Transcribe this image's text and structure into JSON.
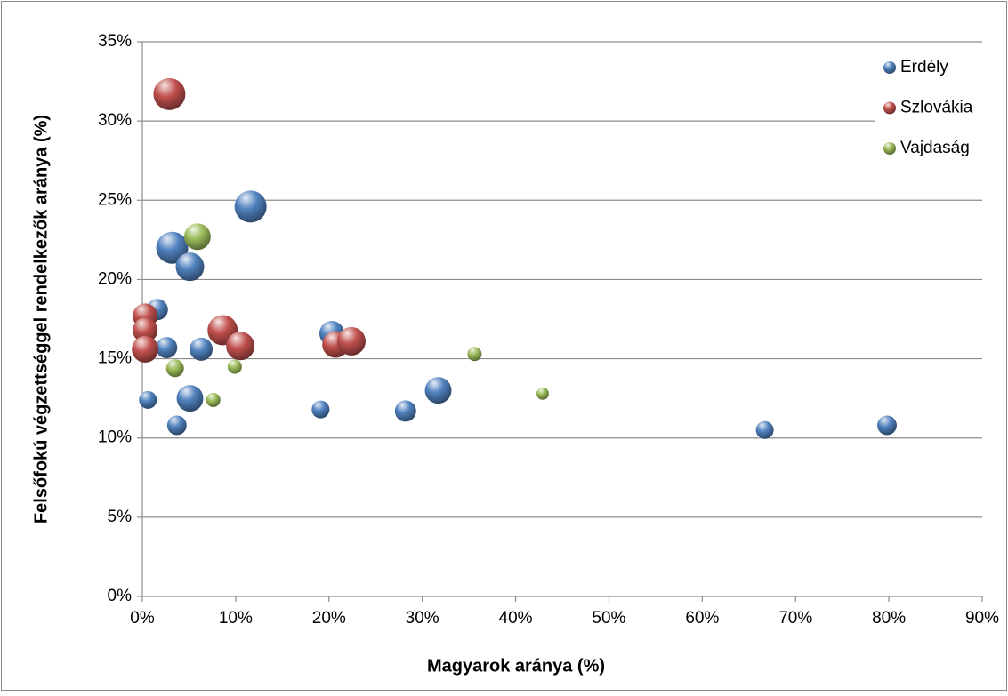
{
  "chart_data": {
    "type": "bubble",
    "xlabel": "Magyarok aránya (%)",
    "ylabel": "Felsőfokú végzettséggel rendelkezők aránya (%)",
    "xlim": [
      0,
      90
    ],
    "xticks": [
      {
        "value": 0,
        "label": "0%"
      },
      {
        "value": 10,
        "label": "10%"
      },
      {
        "value": 20,
        "label": "20%"
      },
      {
        "value": 30,
        "label": "30%"
      },
      {
        "value": 40,
        "label": "40%"
      },
      {
        "value": 50,
        "label": "50%"
      },
      {
        "value": 60,
        "label": "60%"
      },
      {
        "value": 70,
        "label": "70%"
      },
      {
        "value": 80,
        "label": "80%"
      },
      {
        "value": 90,
        "label": "90%"
      }
    ],
    "ylim": [
      0,
      35
    ],
    "yticks": [
      {
        "value": 0,
        "label": "0%"
      },
      {
        "value": 5,
        "label": "5%"
      },
      {
        "value": 10,
        "label": "10%"
      },
      {
        "value": 15,
        "label": "15%"
      },
      {
        "value": 20,
        "label": "20%"
      },
      {
        "value": 25,
        "label": "25%"
      },
      {
        "value": 30,
        "label": "30%"
      },
      {
        "value": 35,
        "label": "35%"
      }
    ],
    "grid": true,
    "legend": "upper right",
    "series": [
      {
        "name": "Erdély",
        "color": "#4f81bd",
        "x": [
          11.6,
          3.2,
          5.1,
          1.6,
          2.6,
          6.3,
          0.6,
          5.1,
          3.7,
          20.3,
          19.1,
          28.2,
          31.7,
          66.7,
          79.8
        ],
        "values": [
          24.6,
          22.0,
          20.8,
          18.1,
          15.7,
          15.6,
          12.4,
          12.5,
          10.8,
          16.6,
          11.8,
          11.7,
          13.0,
          10.5,
          10.8
        ],
        "sizes": [
          81,
          81,
          64,
          36,
          36,
          42,
          25,
          56,
          30,
          49,
          25,
          36,
          56,
          25,
          30
        ]
      },
      {
        "name": "Szlovákia",
        "color": "#c0504d",
        "x": [
          2.9,
          0.3,
          0.3,
          0.3,
          8.6,
          10.5,
          20.7,
          22.4
        ],
        "values": [
          31.7,
          17.7,
          16.8,
          15.6,
          16.8,
          15.8,
          15.9,
          16.1
        ],
        "sizes": [
          81,
          49,
          49,
          56,
          72,
          64,
          56,
          64
        ]
      },
      {
        "name": "Vajdaság",
        "color": "#9bbb59",
        "x": [
          5.9,
          3.5,
          9.9,
          7.6,
          35.6,
          42.9
        ],
        "values": [
          22.7,
          14.4,
          14.5,
          12.4,
          15.3,
          12.8
        ],
        "sizes": [
          56,
          25,
          16,
          16,
          16,
          12
        ]
      }
    ]
  }
}
